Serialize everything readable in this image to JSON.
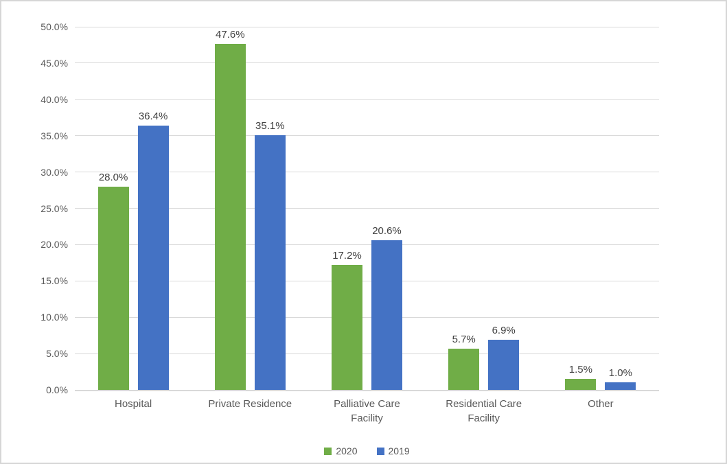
{
  "chart_data": {
    "type": "bar",
    "title": "",
    "xlabel": "",
    "ylabel": "",
    "grid": true,
    "categories": [
      "Hospital",
      "Private Residence",
      "Palliative Care Facility",
      "Residential Care Facility",
      "Other"
    ],
    "series": [
      {
        "name": "2020",
        "color": "#70AD47",
        "values": [
          28.0,
          47.6,
          17.2,
          5.7,
          1.5
        ],
        "labels": [
          "28.0%",
          "47.6%",
          "17.2%",
          "5.7%",
          "1.5%"
        ]
      },
      {
        "name": "2019",
        "color": "#4472C4",
        "values": [
          36.4,
          35.1,
          20.6,
          6.9,
          1.0
        ],
        "labels": [
          "36.4%",
          "35.1%",
          "20.6%",
          "6.9%",
          "1.0%"
        ]
      }
    ],
    "y_axis": {
      "min": 0,
      "max": 50,
      "step": 5,
      "tick_labels": [
        "0.0%",
        "5.0%",
        "10.0%",
        "15.0%",
        "20.0%",
        "25.0%",
        "30.0%",
        "35.0%",
        "40.0%",
        "45.0%",
        "50.0%"
      ]
    },
    "legend": {
      "position": "bottom",
      "entries": [
        "2020",
        "2019"
      ]
    }
  },
  "colors": {
    "series_2020": "#70AD47",
    "series_2019": "#4472C4",
    "gridline": "#D9D9D9",
    "axis_line": "#D9D9D9",
    "axis_text": "#595959",
    "data_label_text": "#404040",
    "border": "#D6D6D6",
    "background": "#FFFFFF"
  }
}
